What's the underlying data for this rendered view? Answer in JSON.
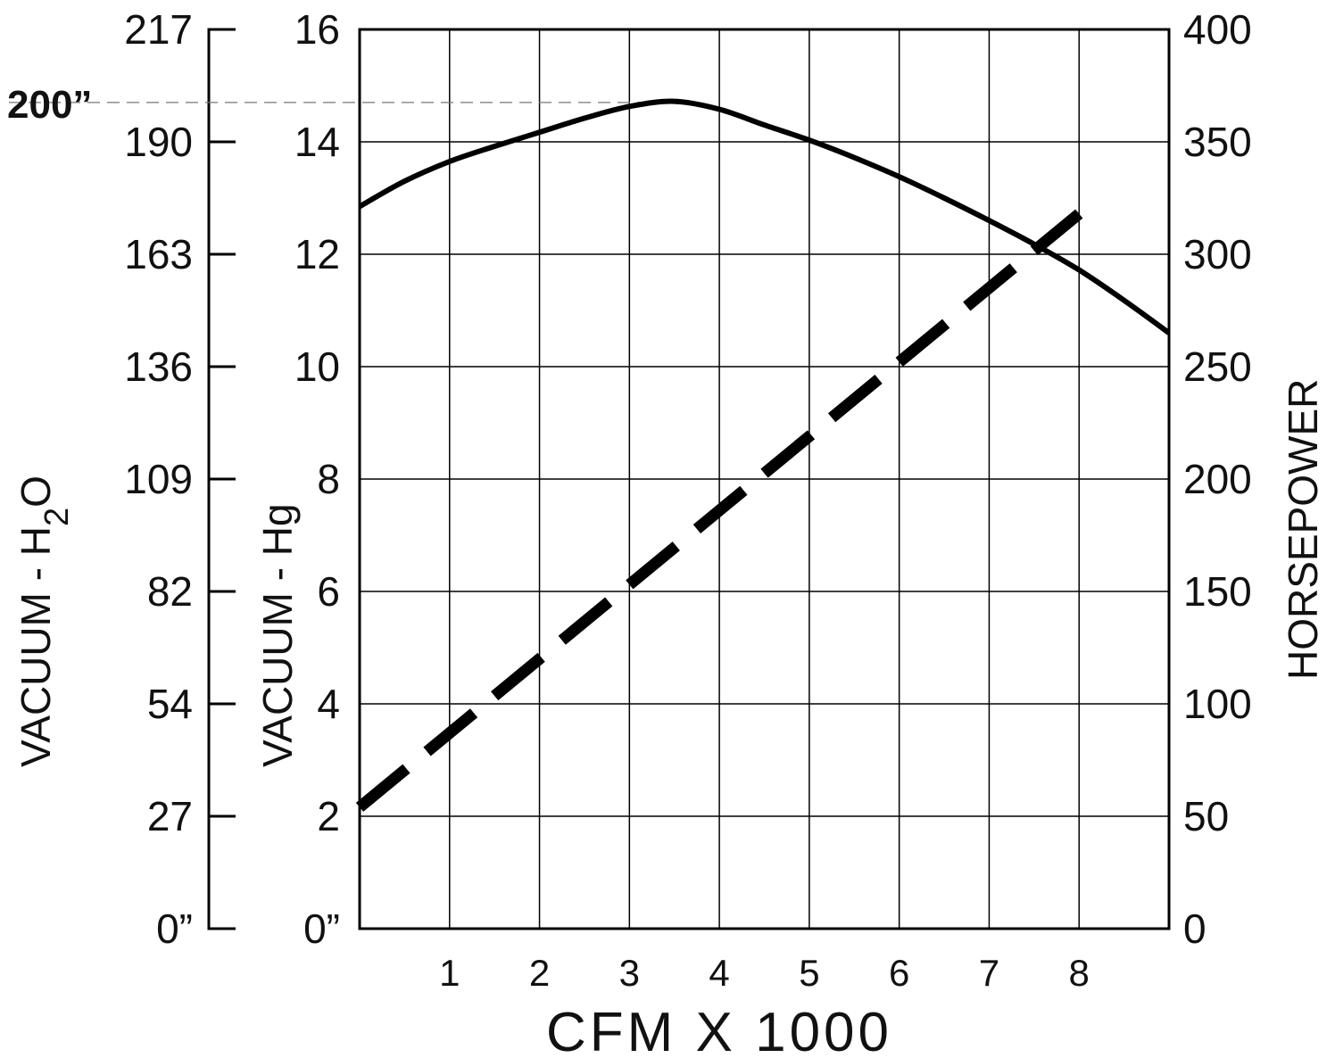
{
  "chart_data": {
    "type": "line",
    "x_axis": {
      "title": "CFM  X  1000",
      "ticks": [
        1,
        2,
        3,
        4,
        5,
        6,
        7,
        8
      ],
      "range": [
        0,
        9
      ]
    },
    "y_axis_hg": {
      "title": "VACUUM  -  Hg",
      "ticks": [
        "16",
        "14",
        "12",
        "10",
        "8",
        "6",
        "4",
        "2",
        "0”"
      ],
      "range": [
        0,
        16
      ]
    },
    "y_axis_h2o": {
      "title_main": "VACUUM  -  H",
      "title_sub": "2",
      "title_tail": "O",
      "ticks": [
        "217",
        "190",
        "163",
        "136",
        "109",
        "82",
        "54",
        "27",
        "0”"
      ],
      "reference_label": "200”",
      "reference_value_hg": 14.7
    },
    "y_axis_hp": {
      "title": "HORSEPOWER",
      "ticks": [
        "400",
        "350",
        "300",
        "250",
        "200",
        "150",
        "100",
        "50",
        "0"
      ],
      "range": [
        0,
        400
      ]
    },
    "series": [
      {
        "style": "solid",
        "axis": "hg",
        "x": [
          0,
          0.5,
          1,
          1.5,
          2,
          2.5,
          3,
          3.5,
          4,
          4.5,
          5,
          5.5,
          6,
          6.5,
          7,
          7.5,
          8,
          8.5,
          9
        ],
        "y": [
          12.85,
          13.3,
          13.65,
          13.92,
          14.17,
          14.42,
          14.63,
          14.72,
          14.58,
          14.3,
          14.03,
          13.72,
          13.38,
          13.0,
          12.6,
          12.18,
          11.72,
          11.18,
          10.6
        ]
      },
      {
        "style": "dashed",
        "axis": "hp",
        "x": [
          0,
          8
        ],
        "y": [
          54,
          318
        ]
      }
    ],
    "grid": true,
    "colors": {
      "line": "#000000",
      "grid": "#000000",
      "reference": "#777777"
    }
  }
}
